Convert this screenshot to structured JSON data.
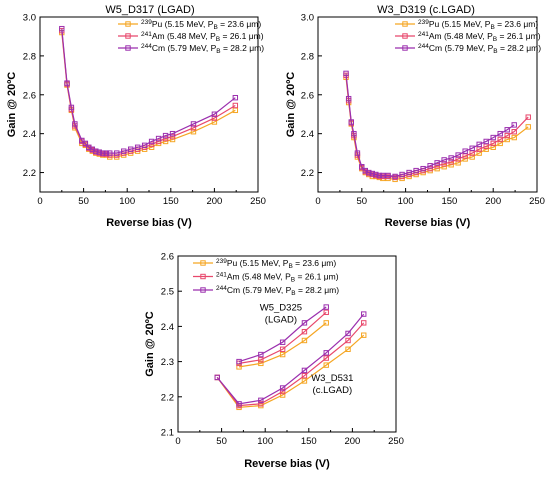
{
  "chart_data": [
    {
      "type": "line",
      "title": "W5_D317 (LGAD)",
      "xlabel": "Reverse bias (V)",
      "ylabel": "Gain @ 20ºC",
      "xlim": [
        0,
        250
      ],
      "ylim": [
        2.1,
        3.0
      ],
      "xticks": [
        "0",
        "50",
        "100",
        "150",
        "200",
        "250"
      ],
      "yticks": [
        "2.2",
        "2.4",
        "2.6",
        "2.8",
        "3.0"
      ],
      "legend_position": "top-right",
      "grid": false,
      "series": [
        {
          "iso": "239",
          "iso_name": "Pu",
          "tail": " (5.15 MeV, P",
          "sub": "B",
          "tail2": " = 23.6 μm)",
          "color": "#f5a623",
          "x": [
            25,
            31,
            36,
            40,
            48,
            52,
            56,
            60,
            64,
            68,
            72,
            76,
            80,
            88,
            96,
            104,
            112,
            120,
            128,
            136,
            144,
            152,
            176,
            200,
            224
          ],
          "y": [
            2.92,
            2.65,
            2.52,
            2.43,
            2.35,
            2.34,
            2.32,
            2.31,
            2.3,
            2.295,
            2.29,
            2.29,
            2.28,
            2.28,
            2.29,
            2.3,
            2.31,
            2.32,
            2.33,
            2.35,
            2.36,
            2.37,
            2.41,
            2.46,
            2.52
          ]
        },
        {
          "iso": "241",
          "iso_name": "Am",
          "tail": " (5.48 MeV, P",
          "sub": "B",
          "tail2": " = 26.1 μm)",
          "color": "#e8486c",
          "x": [
            25,
            31,
            36,
            40,
            48,
            52,
            56,
            60,
            64,
            68,
            72,
            76,
            80,
            88,
            96,
            104,
            112,
            120,
            128,
            136,
            144,
            152,
            176,
            200,
            224
          ],
          "y": [
            2.93,
            2.655,
            2.525,
            2.44,
            2.36,
            2.345,
            2.325,
            2.315,
            2.305,
            2.3,
            2.295,
            2.295,
            2.29,
            2.29,
            2.3,
            2.31,
            2.32,
            2.33,
            2.345,
            2.36,
            2.375,
            2.385,
            2.43,
            2.48,
            2.545
          ]
        },
        {
          "iso": "244",
          "iso_name": "Cm",
          "tail": " (5.79 MeV, P",
          "sub": "B",
          "tail2": " = 28.2 μm)",
          "color": "#9b2fae",
          "x": [
            25,
            31,
            36,
            40,
            48,
            52,
            56,
            60,
            64,
            68,
            72,
            76,
            80,
            88,
            96,
            104,
            112,
            120,
            128,
            136,
            144,
            152,
            176,
            200,
            224
          ],
          "y": [
            2.94,
            2.66,
            2.535,
            2.45,
            2.365,
            2.35,
            2.33,
            2.32,
            2.31,
            2.305,
            2.3,
            2.3,
            2.3,
            2.3,
            2.31,
            2.32,
            2.33,
            2.34,
            2.36,
            2.375,
            2.39,
            2.4,
            2.45,
            2.5,
            2.585
          ]
        }
      ]
    },
    {
      "type": "line",
      "title": "W3_D319 (c.LGAD)",
      "xlabel": "Reverse bias (V)",
      "ylabel": "Gain @ 20ºC",
      "xlim": [
        0,
        250
      ],
      "ylim": [
        2.1,
        3.0
      ],
      "xticks": [
        "0",
        "50",
        "100",
        "150",
        "200",
        "250"
      ],
      "yticks": [
        "2.2",
        "2.4",
        "2.6",
        "2.8",
        "3.0"
      ],
      "legend_position": "top-right",
      "grid": false,
      "series": [
        {
          "iso": "239",
          "iso_name": "Pu",
          "tail": " (5.15 MeV, P",
          "sub": "B",
          "tail2": " = 23.6 μm)",
          "color": "#f5a623",
          "x": [
            32,
            35,
            38,
            41,
            45,
            50,
            54,
            58,
            62,
            66,
            70,
            74,
            80,
            88,
            96,
            104,
            112,
            120,
            128,
            136,
            144,
            152,
            160,
            168,
            176,
            184,
            192,
            200,
            208,
            216,
            224,
            240
          ],
          "y": [
            2.69,
            2.56,
            2.45,
            2.38,
            2.28,
            2.22,
            2.2,
            2.19,
            2.18,
            2.18,
            2.175,
            2.17,
            2.17,
            2.165,
            2.17,
            2.18,
            2.19,
            2.2,
            2.21,
            2.22,
            2.23,
            2.24,
            2.25,
            2.27,
            2.28,
            2.3,
            2.32,
            2.33,
            2.35,
            2.37,
            2.38,
            2.435
          ]
        },
        {
          "iso": "241",
          "iso_name": "Am",
          "tail": " (5.48 MeV, P",
          "sub": "B",
          "tail2": " = 26.1 μm)",
          "color": "#e8486c",
          "x": [
            32,
            35,
            38,
            41,
            45,
            50,
            54,
            58,
            62,
            66,
            70,
            74,
            80,
            88,
            96,
            104,
            112,
            120,
            128,
            136,
            144,
            152,
            160,
            168,
            176,
            184,
            192,
            200,
            208,
            216,
            224,
            240
          ],
          "y": [
            2.7,
            2.57,
            2.455,
            2.39,
            2.29,
            2.225,
            2.205,
            2.195,
            2.19,
            2.185,
            2.18,
            2.18,
            2.18,
            2.175,
            2.18,
            2.19,
            2.2,
            2.21,
            2.22,
            2.235,
            2.245,
            2.255,
            2.27,
            2.285,
            2.3,
            2.32,
            2.335,
            2.35,
            2.37,
            2.39,
            2.41,
            2.485
          ]
        },
        {
          "iso": "244",
          "iso_name": "Cm",
          "tail": " (5.79 MeV, P",
          "sub": "B",
          "tail2": " = 28.2 μm)",
          "color": "#9b2fae",
          "x": [
            32,
            35,
            38,
            41,
            45,
            50,
            54,
            58,
            62,
            66,
            70,
            74,
            80,
            88,
            96,
            104,
            112,
            120,
            128,
            136,
            144,
            152,
            160,
            168,
            176,
            184,
            192,
            200,
            208,
            216,
            224
          ],
          "y": [
            2.71,
            2.58,
            2.46,
            2.4,
            2.3,
            2.23,
            2.21,
            2.2,
            2.195,
            2.19,
            2.185,
            2.185,
            2.185,
            2.18,
            2.19,
            2.2,
            2.21,
            2.22,
            2.235,
            2.25,
            2.265,
            2.275,
            2.29,
            2.31,
            2.325,
            2.345,
            2.36,
            2.38,
            2.4,
            2.42,
            2.445
          ]
        }
      ]
    },
    {
      "type": "line",
      "title": "",
      "xlabel": "Reverse bias (V)",
      "ylabel": "Gain @ 20ºC",
      "xlim": [
        0,
        250
      ],
      "ylim": [
        2.1,
        2.6
      ],
      "xticks": [
        "0",
        "50",
        "100",
        "150",
        "200",
        "250"
      ],
      "yticks": [
        "2.1",
        "2.2",
        "2.3",
        "2.4",
        "2.5",
        "2.6"
      ],
      "legend_position": "top-right",
      "grid": false,
      "annotations": [
        {
          "lines": [
            "W5_D325",
            "(LGAD)"
          ],
          "x": 118,
          "y": 2.445
        },
        {
          "lines": [
            "W3_D531",
            "(c.LGAD)"
          ],
          "x": 177,
          "y": 2.245
        }
      ],
      "series": [
        {
          "iso": "239",
          "iso_name": "Pu",
          "tail": " (5.15 MeV, P",
          "sub": "B",
          "tail2": " = 23.6 μm)",
          "color": "#f5a623",
          "segments": [
            {
              "x": [
                70,
                95,
                120,
                145,
                170
              ],
              "y": [
                2.285,
                2.295,
                2.32,
                2.36,
                2.41
              ]
            },
            {
              "x": [
                45,
                70,
                95,
                120,
                145,
                170,
                195,
                213
              ],
              "y": [
                2.255,
                2.17,
                2.175,
                2.205,
                2.245,
                2.29,
                2.335,
                2.375
              ]
            }
          ]
        },
        {
          "iso": "241",
          "iso_name": "Am",
          "tail": " (5.48 MeV, P",
          "sub": "B",
          "tail2": " = 26.1 μm)",
          "color": "#e8486c",
          "segments": [
            {
              "x": [
                70,
                95,
                120,
                145,
                170
              ],
              "y": [
                2.295,
                2.305,
                2.335,
                2.385,
                2.44
              ]
            },
            {
              "x": [
                45,
                70,
                95,
                120,
                145,
                170,
                195,
                213
              ],
              "y": [
                2.255,
                2.175,
                2.18,
                2.215,
                2.26,
                2.31,
                2.36,
                2.41
              ]
            }
          ]
        },
        {
          "iso": "244",
          "iso_name": "Cm",
          "tail": " (5.79 MeV, P",
          "sub": "B",
          "tail2": " = 28.2 μm)",
          "color": "#9b2fae",
          "segments": [
            {
              "x": [
                70,
                95,
                120,
                145,
                170
              ],
              "y": [
                2.3,
                2.32,
                2.355,
                2.41,
                2.455
              ]
            },
            {
              "x": [
                45,
                70,
                95,
                120,
                145,
                170,
                195,
                213
              ],
              "y": [
                2.255,
                2.18,
                2.19,
                2.225,
                2.275,
                2.325,
                2.38,
                2.435
              ]
            }
          ]
        }
      ]
    }
  ]
}
